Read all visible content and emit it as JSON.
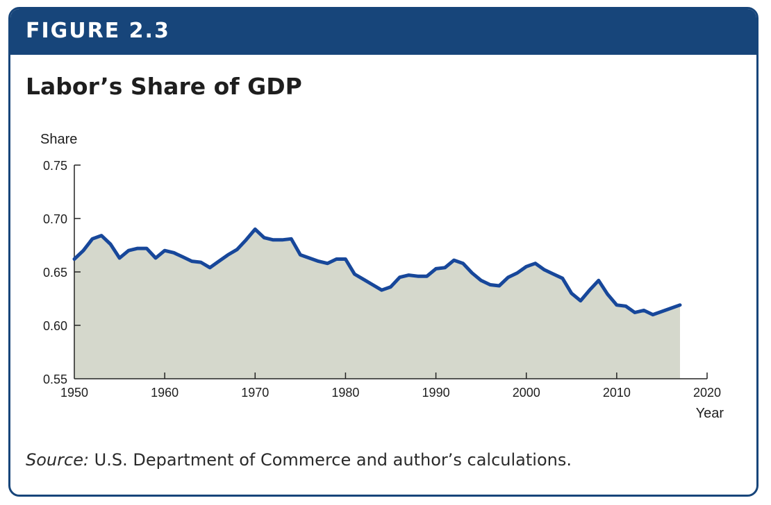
{
  "figure": {
    "label": "FIGURE 2.3",
    "title": "Labor’s Share of GDP",
    "source_prefix": "Source:",
    "source_text": " U.S. Department of Commerce and author’s calculations."
  },
  "colors": {
    "banner": "#17457a",
    "line": "#17479a",
    "area": "#d5d8cc"
  },
  "chart_data": {
    "type": "area",
    "xlabel": "Year",
    "ylabel": "Share",
    "xlim": [
      1950,
      2020
    ],
    "ylim": [
      0.55,
      0.75
    ],
    "xticks": [
      1950,
      1960,
      1970,
      1980,
      1990,
      2000,
      2010,
      2020
    ],
    "yticks": [
      0.55,
      0.6,
      0.65,
      0.7,
      0.75
    ],
    "ytick_labels": [
      "0.55",
      "0.60",
      "0.65",
      "0.70",
      "0.75"
    ],
    "grid": false,
    "x": [
      1950,
      1951,
      1952,
      1953,
      1954,
      1955,
      1956,
      1957,
      1958,
      1959,
      1960,
      1961,
      1962,
      1963,
      1964,
      1965,
      1966,
      1967,
      1968,
      1969,
      1970,
      1971,
      1972,
      1973,
      1974,
      1975,
      1976,
      1977,
      1978,
      1979,
      1980,
      1981,
      1982,
      1983,
      1984,
      1985,
      1986,
      1987,
      1988,
      1989,
      1990,
      1991,
      1992,
      1993,
      1994,
      1995,
      1996,
      1997,
      1998,
      1999,
      2000,
      2001,
      2002,
      2003,
      2004,
      2005,
      2006,
      2007,
      2008,
      2009,
      2010,
      2011,
      2012,
      2013,
      2014,
      2015,
      2016,
      2017
    ],
    "values": [
      0.662,
      0.67,
      0.681,
      0.684,
      0.676,
      0.663,
      0.67,
      0.672,
      0.672,
      0.663,
      0.67,
      0.668,
      0.664,
      0.66,
      0.659,
      0.654,
      0.66,
      0.666,
      0.671,
      0.68,
      0.69,
      0.682,
      0.68,
      0.68,
      0.681,
      0.666,
      0.663,
      0.66,
      0.658,
      0.662,
      0.662,
      0.648,
      0.643,
      0.638,
      0.633,
      0.636,
      0.645,
      0.647,
      0.646,
      0.646,
      0.653,
      0.654,
      0.661,
      0.658,
      0.649,
      0.642,
      0.638,
      0.637,
      0.645,
      0.649,
      0.655,
      0.658,
      0.652,
      0.648,
      0.644,
      0.63,
      0.623,
      0.633,
      0.642,
      0.629,
      0.619,
      0.618,
      0.612,
      0.614,
      0.61,
      0.613,
      0.616,
      0.619
    ]
  }
}
